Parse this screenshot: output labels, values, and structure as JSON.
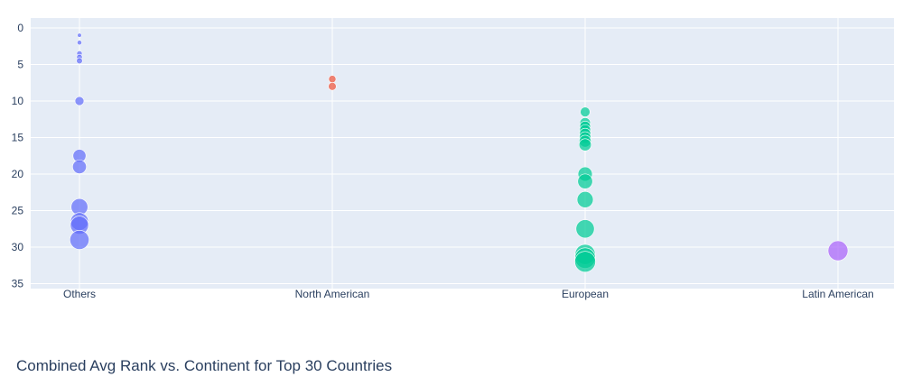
{
  "chart_data": {
    "type": "scatter",
    "title": "Combined Avg Rank vs. Continent for Top 30 Countries",
    "xlabel": "",
    "ylabel": "",
    "categories": [
      "Others",
      "North American",
      "European",
      "Latin American"
    ],
    "y_reversed": true,
    "ylim": [
      0,
      35
    ],
    "yticks": [
      0,
      5,
      10,
      15,
      20,
      25,
      30,
      35
    ],
    "grid": true,
    "legend": "none",
    "series": [
      {
        "category": "Others",
        "color": "#636efa",
        "y": [
          1,
          2,
          3.5,
          4,
          4.5,
          10,
          17.5,
          19,
          24.5,
          26.5,
          27,
          29
        ]
      },
      {
        "category": "North American",
        "color": "#ef553b",
        "y": [
          7,
          8
        ]
      },
      {
        "category": "European",
        "color": "#00cc96",
        "y": [
          11.5,
          13,
          13.5,
          14,
          14.5,
          15,
          15.5,
          16,
          20,
          21,
          23.5,
          27.5,
          31,
          31.5,
          32
        ]
      },
      {
        "category": "Latin American",
        "color": "#ab63fa",
        "y": [
          30.5
        ]
      }
    ]
  }
}
